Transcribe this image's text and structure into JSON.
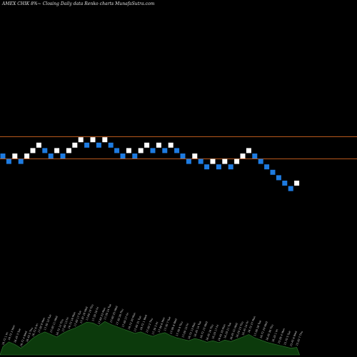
{
  "chart_data": {
    "type": "renko",
    "title": "AMEX  CHIK 8%~  Closing Daily data  Renko  charts MunafaSutra.com",
    "resistance_lines": [
      17.3,
      16.45
    ],
    "colors": {
      "background": "#000000",
      "up_brick": "#ffffff",
      "down_brick": "#1e7be0",
      "level_line": "#b8581c",
      "volume_area": "#0c3a0c",
      "volume_outline": "#2f7a2f"
    },
    "bricks": [
      {
        "dir": "down",
        "close": 16.72
      },
      {
        "dir": "down",
        "close": 16.45
      },
      {
        "dir": "up",
        "close": 16.72
      },
      {
        "dir": "down",
        "close": 16.45
      },
      {
        "dir": "up",
        "close": 16.72
      },
      {
        "dir": "up",
        "close": 17.0
      },
      {
        "dir": "up",
        "close": 17.3
      },
      {
        "dir": "down",
        "close": 17.0
      },
      {
        "dir": "down",
        "close": 16.72
      },
      {
        "dir": "up",
        "close": 17.0
      },
      {
        "dir": "down",
        "close": 16.72
      },
      {
        "dir": "up",
        "close": 17.0
      },
      {
        "dir": "up",
        "close": 17.3
      },
      {
        "dir": "up",
        "close": 17.6
      },
      {
        "dir": "down",
        "close": 17.3
      },
      {
        "dir": "up",
        "close": 17.6
      },
      {
        "dir": "down",
        "close": 17.3
      },
      {
        "dir": "up",
        "close": 17.6
      },
      {
        "dir": "down",
        "close": 17.3
      },
      {
        "dir": "down",
        "close": 17.0
      },
      {
        "dir": "down",
        "close": 16.72
      },
      {
        "dir": "up",
        "close": 17.0
      },
      {
        "dir": "down",
        "close": 16.72
      },
      {
        "dir": "up",
        "close": 17.0
      },
      {
        "dir": "up",
        "close": 17.3
      },
      {
        "dir": "down",
        "close": 17.0
      },
      {
        "dir": "up",
        "close": 17.3
      },
      {
        "dir": "down",
        "close": 17.0
      },
      {
        "dir": "up",
        "close": 17.3
      },
      {
        "dir": "down",
        "close": 17.0
      },
      {
        "dir": "down",
        "close": 16.72
      },
      {
        "dir": "down",
        "close": 16.45
      },
      {
        "dir": "up",
        "close": 16.72
      },
      {
        "dir": "down",
        "close": 16.45
      },
      {
        "dir": "down",
        "close": 16.2
      },
      {
        "dir": "up",
        "close": 16.45
      },
      {
        "dir": "down",
        "close": 16.2
      },
      {
        "dir": "up",
        "close": 16.45
      },
      {
        "dir": "down",
        "close": 16.2
      },
      {
        "dir": "up",
        "close": 16.45
      },
      {
        "dir": "up",
        "close": 16.72
      },
      {
        "dir": "up",
        "close": 17.0
      },
      {
        "dir": "down",
        "close": 16.72
      },
      {
        "dir": "down",
        "close": 16.45
      },
      {
        "dir": "down",
        "close": 16.2
      },
      {
        "dir": "down",
        "close": 15.95
      },
      {
        "dir": "down",
        "close": 15.7
      },
      {
        "dir": "down",
        "close": 15.45
      },
      {
        "dir": "down",
        "close": 15.2
      },
      {
        "dir": "up",
        "close": 15.45
      }
    ],
    "volume_profile": [
      0.22,
      0.35,
      0.28,
      0.18,
      0.3,
      0.45,
      0.55,
      0.62,
      0.55,
      0.48,
      0.58,
      0.66,
      0.72,
      0.8,
      0.88,
      0.86,
      0.78,
      0.9,
      0.82,
      0.76,
      0.7,
      0.64,
      0.58,
      0.62,
      0.55,
      0.5,
      0.56,
      0.6,
      0.52,
      0.46,
      0.42,
      0.38,
      0.44,
      0.4,
      0.34,
      0.38,
      0.33,
      0.4,
      0.36,
      0.42,
      0.48,
      0.55,
      0.46,
      0.4,
      0.34,
      0.3,
      0.26,
      0.22,
      0.18,
      0.2
    ],
    "volume_labels": [
      "16.72 1 Fri",
      "16.72 2 Mon",
      "16.45 3 Tue",
      "16.72 4 Wed",
      "16.45 5 Thu",
      "16.72 6 Fri",
      "17.00 9 Mon",
      "17.30 10 Tue",
      "17.00 11 Wed",
      "16.72 12 Thu",
      "17.00 13 Fri",
      "16.72 16 Mon",
      "17.00 17 Tue",
      "17.30 18 Wed",
      "17.60 19 Thu",
      "17.30 20 Fri",
      "17.60 23 Mon",
      "17.30 24 Tue",
      "17.60 25 Wed",
      "17.30 26 Thu",
      "17.00 27 Fri",
      "16.72 30 Mon",
      "17.00 31 Tue",
      "16.72 1 Wed",
      "17.00 2 Thu",
      "17.30 3 Fri",
      "17.00 6 Mon",
      "17.30 7 Tue",
      "17.00 8 Wed",
      "17.30 9 Thu",
      "17.00 10 Fri",
      "16.72 13 Mon",
      "16.45 14 Tue",
      "16.72 15 Wed",
      "16.45 16 Thu",
      "16.20 17 Fri",
      "16.45 20 Mon",
      "16.20 21 Tue",
      "16.45 22 Wed",
      "16.20 23 Thu",
      "16.45 24 Fri",
      "16.72 27 Mon",
      "17.00 28 Tue",
      "16.72 29 Wed",
      "16.45 30 Thu",
      "16.20 1 Fri",
      "15.95 4 Mon",
      "15.70 5 Tue",
      "15.45 6 Wed",
      "15.20 7 Thu"
    ]
  }
}
